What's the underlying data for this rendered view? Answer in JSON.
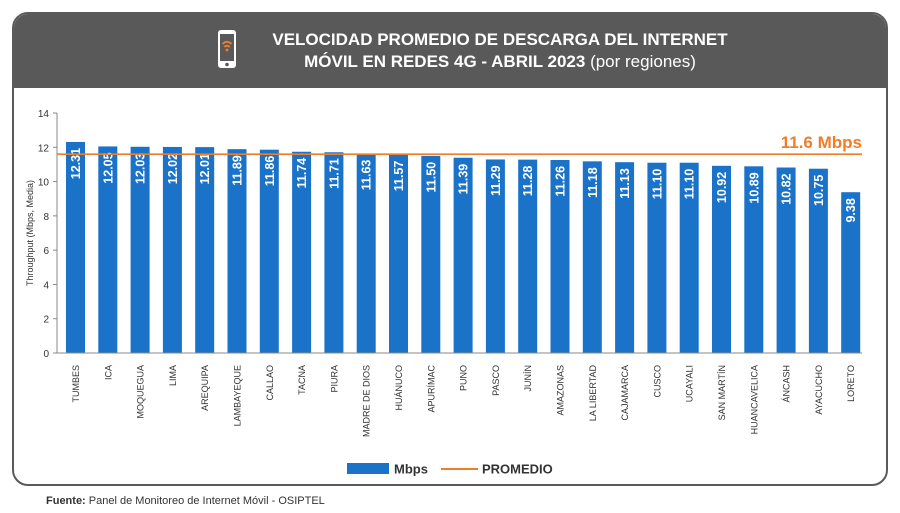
{
  "header": {
    "title_line1": "VELOCIDAD PROMEDIO DE DESCARGA DEL INTERNET",
    "title_line2": "MÓVIL EN REDES 4G - ABRIL 2023",
    "title_sub": "(por regiones)",
    "icon": "smartphone-wifi-icon"
  },
  "source": {
    "label": "Fuente:",
    "text": "Panel de Monitoreo de Internet Móvil - OSIPTEL"
  },
  "colors": {
    "bar": "#1a73c8",
    "average_line": "#f07d28",
    "header_bg": "#595959",
    "grid_axis": "#888888"
  },
  "chart_data": {
    "type": "bar",
    "ylabel": "Throughput (Mbps, Media)",
    "ylim": [
      0,
      14
    ],
    "yticks": [
      0,
      2,
      4,
      6,
      8,
      10,
      12,
      14
    ],
    "categories": [
      "TUMBES",
      "ICA",
      "MOQUEGUA",
      "LIMA",
      "AREQUIPA",
      "LAMBAYEQUE",
      "CALLAO",
      "TACNA",
      "PIURA",
      "MADRE DE DIOS",
      "HUÁNUCO",
      "APURÍMAC",
      "PUNO",
      "PASCO",
      "JUNÍN",
      "AMAZONAS",
      "LA LIBERTAD",
      "CAJAMARCA",
      "CUSCO",
      "UCAYALI",
      "SAN MARTÍN",
      "HUANCAVELICA",
      "ÁNCASH",
      "AYACUCHO",
      "LORETO"
    ],
    "series": [
      {
        "name": "Mbps",
        "values": [
          12.31,
          12.05,
          12.03,
          12.02,
          12.01,
          11.89,
          11.86,
          11.74,
          11.71,
          11.63,
          11.57,
          11.5,
          11.39,
          11.29,
          11.28,
          11.26,
          11.18,
          11.13,
          11.1,
          11.1,
          10.92,
          10.89,
          10.82,
          10.75,
          9.38
        ],
        "data_labels": [
          "12.31",
          "12.05",
          "12.03",
          "12.02",
          "12.01",
          "11.89",
          "11.86",
          "11.74",
          "11.71",
          "11.63",
          "11.57",
          "11.50",
          "11.39",
          "11.29",
          "11.28",
          "11.26",
          "11.18",
          "11.13",
          "11.10",
          "11.10",
          "10.92",
          "10.89",
          "10.82",
          "10.75",
          "9.38"
        ]
      }
    ],
    "average": {
      "name": "PROMEDIO",
      "value": 11.6,
      "label": "11.6 Mbps"
    },
    "legend": {
      "placement": "bottom-center",
      "entries": [
        "Mbps",
        "PROMEDIO"
      ]
    },
    "grid": false
  }
}
